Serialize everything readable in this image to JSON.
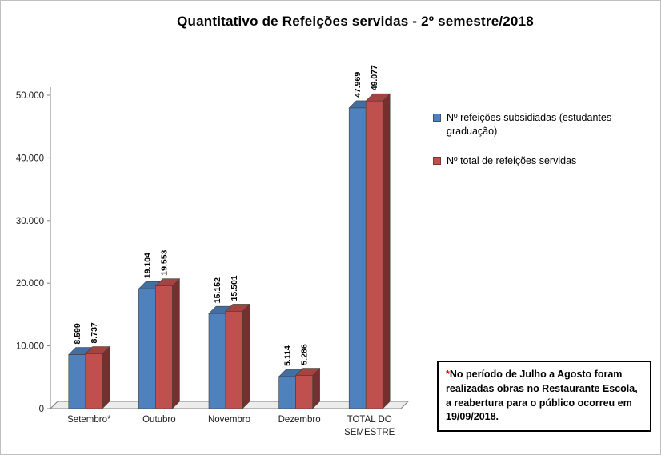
{
  "title": "Quantitativo de Refeições servidas  - 2º semestre/2018",
  "chart_data": {
    "type": "bar",
    "style": "3d-clustered-column",
    "categories": [
      "Setembro*",
      "Outubro",
      "Novembro",
      "Dezembro",
      "TOTAL DO SEMESTRE"
    ],
    "series": [
      {
        "name": "Nº refeições subsidiadas (estudantes graduação)",
        "color": "#4F81BD",
        "values": [
          8599,
          19104,
          15152,
          5114,
          47969
        ],
        "labels": [
          "8.599",
          "19.104",
          "15.152",
          "5.114",
          "47.969"
        ]
      },
      {
        "name": "Nº total de refeições servidas",
        "color": "#C0504D",
        "values": [
          8737,
          19553,
          15501,
          5286,
          49077
        ],
        "labels": [
          "8.737",
          "19.553",
          "15.501",
          "5.286",
          "49.077"
        ]
      }
    ],
    "ylim": [
      0,
      50000
    ],
    "ytick_interval": 10000,
    "ytick_labels": [
      "0",
      "10.000",
      "20.000",
      "30.000",
      "40.000",
      "50.000"
    ],
    "grid": false,
    "legend_position": "right",
    "data_labels_rotation": -90
  },
  "annotation": {
    "asterisk": "*",
    "asterisk_color": "#FF0000",
    "text": "No período de Julho a Agosto foram realizadas obras no Restaurante Escola, a reabertura para o público ocorreu em 19/09/2018."
  }
}
